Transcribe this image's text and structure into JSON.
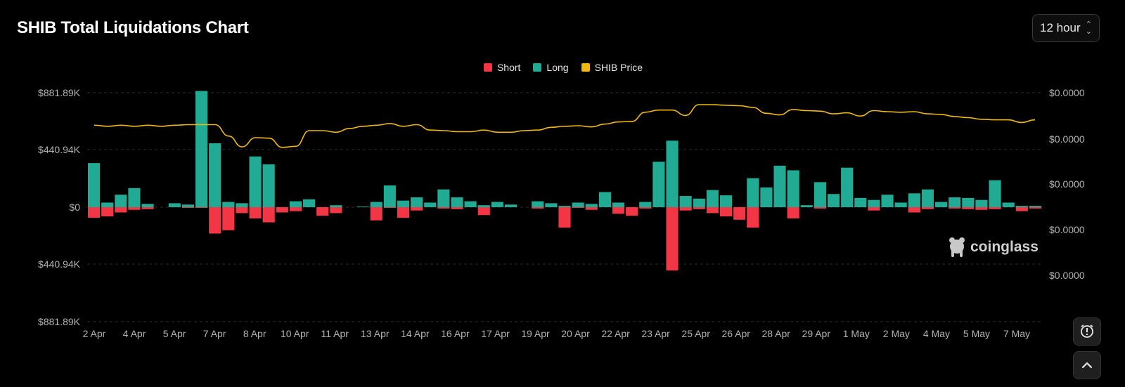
{
  "header": {
    "title": "SHIB Total Liquidations Chart",
    "period": "12 hour"
  },
  "colors": {
    "short": "#f23645",
    "long": "#22ab94",
    "price": "#f0b90b",
    "grid": "#2e2e2e",
    "axis_text": "#b3b3b3"
  },
  "watermark": {
    "text": "coinglass"
  },
  "icons": {
    "alert": "alert-clock-icon",
    "scroll_top": "chevron-up-icon",
    "period_toggle": "updown-chevron-icon"
  },
  "chart_data": {
    "type": "bar",
    "title": "SHIB Total Liquidations Chart",
    "legend": [
      "Short",
      "Long",
      "SHIB Price"
    ],
    "legend_position": "top-center",
    "grid": true,
    "y_left_ticks": [
      "$881.89K",
      "$440.94K",
      "$0",
      "$440.94K",
      "$881.89K"
    ],
    "y_left_range": [
      -881890,
      881890
    ],
    "y_right_ticks": [
      "$0.0000",
      "$0.0000",
      "$0.0000",
      "$0.0000",
      "$0.0000"
    ],
    "x_tick_labels": [
      "2 Apr",
      "4 Apr",
      "5 Apr",
      "7 Apr",
      "8 Apr",
      "10 Apr",
      "11 Apr",
      "13 Apr",
      "14 Apr",
      "16 Apr",
      "17 Apr",
      "19 Apr",
      "20 Apr",
      "22 Apr",
      "23 Apr",
      "25 Apr",
      "26 Apr",
      "28 Apr",
      "29 Apr",
      "1 May",
      "2 May",
      "4 May",
      "5 May",
      "7 May"
    ],
    "long_k": [
      335,
      35,
      95,
      145,
      25,
      0,
      30,
      20,
      882,
      485,
      40,
      30,
      385,
      325,
      0,
      45,
      60,
      0,
      15,
      0,
      5,
      40,
      165,
      50,
      75,
      35,
      135,
      75,
      45,
      15,
      40,
      20,
      0,
      45,
      30,
      10,
      35,
      25,
      115,
      35,
      0,
      40,
      345,
      505,
      85,
      65,
      130,
      90,
      0,
      220,
      150,
      315,
      280,
      15,
      190,
      100,
      300,
      70,
      55,
      95,
      35,
      105,
      135,
      40,
      75,
      70,
      55,
      205,
      35,
      10,
      10
    ],
    "short_k": [
      80,
      70,
      40,
      20,
      15,
      0,
      0,
      5,
      5,
      200,
      175,
      45,
      85,
      115,
      40,
      30,
      0,
      65,
      45,
      0,
      0,
      100,
      5,
      80,
      25,
      0,
      10,
      15,
      0,
      60,
      0,
      0,
      0,
      10,
      0,
      155,
      5,
      20,
      0,
      50,
      65,
      10,
      0,
      480,
      25,
      15,
      45,
      70,
      95,
      155,
      0,
      0,
      85,
      0,
      10,
      0,
      0,
      0,
      25,
      0,
      0,
      40,
      15,
      0,
      10,
      15,
      20,
      15,
      0,
      30,
      10
    ],
    "price_rel": [
      0.62,
      0.6,
      0.62,
      0.6,
      0.62,
      0.6,
      0.62,
      0.63,
      0.63,
      0.63,
      0.42,
      0.22,
      0.39,
      0.38,
      0.21,
      0.23,
      0.52,
      0.52,
      0.49,
      0.56,
      0.6,
      0.62,
      0.65,
      0.6,
      0.63,
      0.53,
      0.52,
      0.5,
      0.5,
      0.53,
      0.49,
      0.49,
      0.52,
      0.53,
      0.58,
      0.6,
      0.61,
      0.59,
      0.64,
      0.68,
      0.69,
      0.86,
      0.9,
      0.9,
      0.8,
      1.0,
      1.0,
      0.99,
      0.98,
      0.95,
      0.84,
      0.81,
      0.91,
      0.89,
      0.88,
      0.83,
      0.85,
      0.79,
      0.89,
      0.87,
      0.86,
      0.87,
      0.83,
      0.82,
      0.78,
      0.76,
      0.73,
      0.72,
      0.72,
      0.67,
      0.72
    ]
  }
}
